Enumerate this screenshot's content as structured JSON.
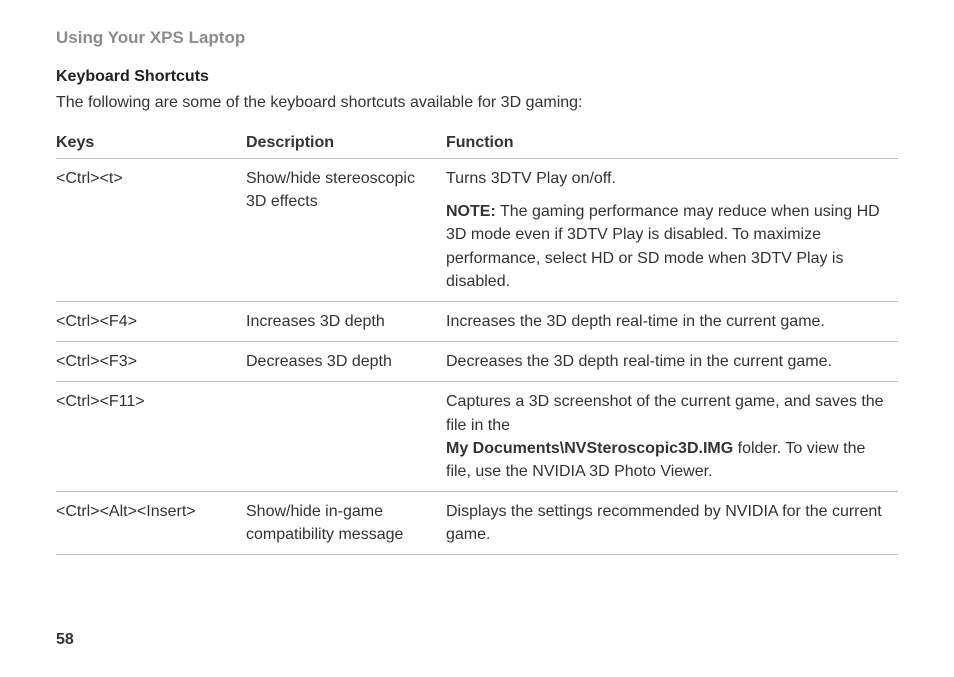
{
  "section_title": "Using Your XPS Laptop",
  "subtitle": "Keyboard Shortcuts",
  "intro": "The following are some of the keyboard shortcuts available for 3D gaming:",
  "table": {
    "headers": {
      "keys": "Keys",
      "description": "Description",
      "function": "Function"
    },
    "rows": [
      {
        "keys": "<Ctrl><t>",
        "description": "Show/hide stereoscopic 3D effects",
        "function_line1": "Turns 3DTV Play on/off.",
        "note_label": "NOTE:",
        "note_body": " The gaming performance may reduce when using HD 3D mode even if 3DTV Play is disabled. To maximize performance, select HD or SD mode when 3DTV Play is disabled."
      },
      {
        "keys": "<Ctrl><F4>",
        "description": "Increases 3D depth",
        "function": "Increases the 3D depth real-time in the current game."
      },
      {
        "keys": "<Ctrl><F3>",
        "description": "Decreases 3D depth",
        "function": "Decreases the 3D depth real-time in the current game."
      },
      {
        "keys": "<Ctrl><F11>",
        "description": "",
        "function_line1": "Captures a 3D screenshot of the current game, and saves the file in the",
        "path_bold": "My Documents\\NVSteroscopic3D.IMG",
        "path_tail": " folder. To view the file, use the NVIDIA 3D Photo Viewer."
      },
      {
        "keys": "<Ctrl><Alt><Insert>",
        "description": "Show/hide in-game compatibility message",
        "function": "Displays the settings recommended by NVIDIA for the current game."
      }
    ]
  },
  "page_number": "58"
}
